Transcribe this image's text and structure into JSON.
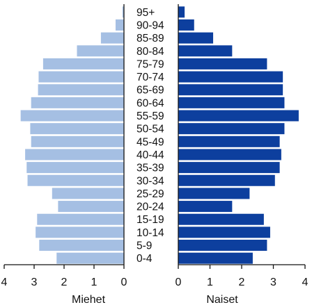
{
  "chart_data": {
    "type": "bar",
    "categories": [
      "95+",
      "90-94",
      "85-89",
      "80-84",
      "75-79",
      "70-74",
      "65-69",
      "60-64",
      "55-59",
      "50-54",
      "45-49",
      "40-44",
      "35-39",
      "30-34",
      "25-29",
      "20-24",
      "15-19",
      "10-14",
      "5-9",
      "0-4"
    ],
    "series": [
      {
        "name": "Miehet",
        "color": "#a5bfe3",
        "values": [
          0.05,
          0.28,
          0.77,
          1.57,
          2.7,
          2.85,
          2.87,
          3.1,
          3.45,
          3.13,
          3.1,
          3.3,
          3.25,
          3.22,
          2.4,
          2.2,
          2.9,
          2.95,
          2.83,
          2.25
        ]
      },
      {
        "name": "Naiset",
        "color": "#0d3f9e",
        "values": [
          0.2,
          0.5,
          1.1,
          1.7,
          2.8,
          3.3,
          3.3,
          3.35,
          3.8,
          3.35,
          3.2,
          3.25,
          3.2,
          3.05,
          2.25,
          1.7,
          2.7,
          2.9,
          2.8,
          2.35
        ]
      }
    ],
    "left_axis": {
      "label": "Miehet",
      "ticks": [
        "4",
        "3",
        "2",
        "1",
        "0"
      ],
      "range": [
        0,
        4
      ]
    },
    "right_axis": {
      "label": "Naiset",
      "ticks": [
        "0",
        "1",
        "2",
        "3",
        "4"
      ],
      "range": [
        0,
        4
      ]
    },
    "grid": false
  }
}
